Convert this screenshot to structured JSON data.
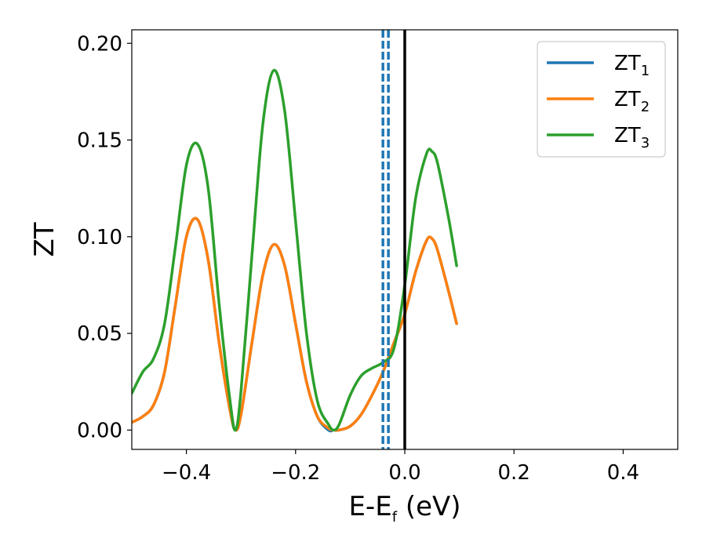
{
  "chart_data": {
    "type": "line",
    "title": "",
    "xlabel": "E-E",
    "xlabel_sub": "f",
    "xlabel_unit": " (eV)",
    "ylabel": "ZT",
    "xlim": [
      -0.5,
      0.5
    ],
    "ylim": [
      -0.01,
      0.207
    ],
    "xticks": [
      -0.4,
      -0.2,
      0.0,
      0.2,
      0.4
    ],
    "xtick_labels": [
      "−0.4",
      "−0.2",
      "0.0",
      "0.2",
      "0.4"
    ],
    "yticks": [
      0.0,
      0.05,
      0.1,
      0.15,
      0.2
    ],
    "ytick_labels": [
      "0.00",
      "0.05",
      "0.10",
      "0.15",
      "0.20"
    ],
    "grid": false,
    "legend_position": "top-right",
    "series": [
      {
        "name": "ZT",
        "name_sub": "1",
        "color": "#1f77b4",
        "style": "solid",
        "x": [
          -0.5,
          -0.48,
          -0.46,
          -0.44,
          -0.42,
          -0.4,
          -0.38,
          -0.36,
          -0.34,
          -0.32,
          -0.31,
          -0.3,
          -0.28,
          -0.26,
          -0.24,
          -0.22,
          -0.2,
          -0.18,
          -0.16,
          -0.14,
          -0.13,
          -0.12,
          -0.1,
          -0.08,
          -0.06,
          -0.04,
          -0.02,
          0.0,
          0.02,
          0.04,
          0.05,
          0.06,
          0.08,
          0.095
        ],
        "values": [
          0.004,
          0.007,
          0.013,
          0.03,
          0.065,
          0.1,
          0.109,
          0.088,
          0.045,
          0.01,
          0.0,
          0.008,
          0.045,
          0.08,
          0.096,
          0.085,
          0.055,
          0.025,
          0.007,
          0.0,
          0.0,
          0.0,
          0.002,
          0.008,
          0.018,
          0.03,
          0.045,
          0.06,
          0.082,
          0.098,
          0.099,
          0.093,
          0.072,
          0.055
        ]
      },
      {
        "name": "ZT",
        "name_sub": "2",
        "color": "#ff7f0e",
        "style": "solid",
        "x": [
          -0.5,
          -0.48,
          -0.46,
          -0.44,
          -0.42,
          -0.4,
          -0.38,
          -0.36,
          -0.34,
          -0.32,
          -0.31,
          -0.3,
          -0.28,
          -0.26,
          -0.24,
          -0.22,
          -0.2,
          -0.18,
          -0.16,
          -0.14,
          -0.13,
          -0.12,
          -0.1,
          -0.08,
          -0.06,
          -0.04,
          -0.02,
          0.0,
          0.02,
          0.04,
          0.05,
          0.06,
          0.08,
          0.095
        ],
        "values": [
          0.004,
          0.007,
          0.013,
          0.03,
          0.065,
          0.1,
          0.109,
          0.088,
          0.045,
          0.01,
          0.0,
          0.008,
          0.045,
          0.08,
          0.096,
          0.085,
          0.055,
          0.025,
          0.007,
          0.001,
          0.0,
          0.0,
          0.002,
          0.008,
          0.018,
          0.03,
          0.045,
          0.06,
          0.082,
          0.098,
          0.099,
          0.093,
          0.072,
          0.055
        ]
      },
      {
        "name": "ZT",
        "name_sub": "3",
        "color": "#2ca02c",
        "style": "solid",
        "x": [
          -0.5,
          -0.48,
          -0.46,
          -0.44,
          -0.42,
          -0.4,
          -0.38,
          -0.36,
          -0.34,
          -0.32,
          -0.31,
          -0.3,
          -0.28,
          -0.26,
          -0.24,
          -0.22,
          -0.2,
          -0.18,
          -0.16,
          -0.14,
          -0.13,
          -0.12,
          -0.1,
          -0.08,
          -0.06,
          -0.04,
          -0.02,
          0.0,
          0.02,
          0.04,
          0.05,
          0.06,
          0.08,
          0.095
        ],
        "values": [
          0.019,
          0.03,
          0.037,
          0.055,
          0.095,
          0.137,
          0.148,
          0.125,
          0.065,
          0.015,
          0.0,
          0.02,
          0.09,
          0.158,
          0.186,
          0.165,
          0.108,
          0.05,
          0.015,
          0.003,
          0.0,
          0.003,
          0.018,
          0.028,
          0.032,
          0.035,
          0.042,
          0.075,
          0.12,
          0.143,
          0.144,
          0.138,
          0.11,
          0.085
        ]
      }
    ],
    "vlines": [
      {
        "x": -0.04,
        "color": "#1f77b4",
        "style": "dashed"
      },
      {
        "x": -0.03,
        "color": "#1f77b4",
        "style": "dashed"
      },
      {
        "x": 0.0,
        "color": "#000000",
        "style": "solid"
      }
    ]
  }
}
